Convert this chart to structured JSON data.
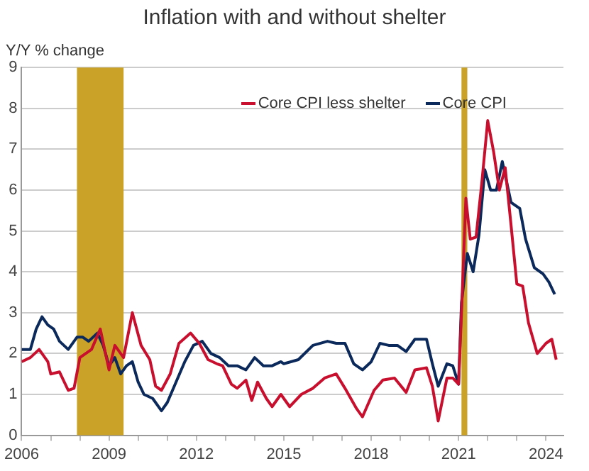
{
  "chart_data": {
    "type": "line",
    "title": "Inflation with and without shelter",
    "ylabel": "Y/Y % change",
    "xlim": [
      2006,
      2024.6
    ],
    "xticks": [
      2006,
      {
        "value": 2007,
        "label": null
      },
      {
        "value": 2008,
        "label": null
      },
      2009,
      {
        "value": 2010,
        "label": null
      },
      {
        "value": 2011,
        "label": null
      },
      2012,
      {
        "value": 2013,
        "label": null
      },
      {
        "value": 2014,
        "label": null
      },
      2015,
      {
        "value": 2016,
        "label": null
      },
      {
        "value": 2017,
        "label": null
      },
      2018,
      {
        "value": 2019,
        "label": null
      },
      {
        "value": 2020,
        "label": null
      },
      2021,
      {
        "value": 2022,
        "label": null
      },
      {
        "value": 2023,
        "label": null
      },
      2024
    ],
    "ylim": [
      0,
      9
    ],
    "yticks": [
      0,
      1,
      2,
      3,
      4,
      5,
      6,
      7,
      8,
      9
    ],
    "grid": "y",
    "legend": "top right",
    "marker": "none",
    "line_style": "solid",
    "bands": [
      {
        "axis": "x",
        "from": 2007.9,
        "to": 2009.5,
        "color": "#c9a227"
      },
      {
        "axis": "x",
        "from": 2021.1,
        "to": 2021.3,
        "color": "#c9a227"
      }
    ],
    "series": [
      {
        "name": "Core CPI less shelter",
        "color": "#c8102e",
        "x": [
          2006.0,
          2006.3,
          2006.6,
          2006.9,
          2007.0,
          2007.3,
          2007.6,
          2007.8,
          2008.0,
          2008.2,
          2008.4,
          2008.7,
          2009.0,
          2009.2,
          2009.5,
          2009.8,
          2010.1,
          2010.4,
          2010.6,
          2010.8,
          2011.1,
          2011.4,
          2011.8,
          2012.1,
          2012.4,
          2012.7,
          2012.9,
          2013.2,
          2013.4,
          2013.7,
          2013.9,
          2014.1,
          2014.4,
          2014.6,
          2014.9,
          2015.2,
          2015.6,
          2016.0,
          2016.4,
          2016.8,
          2017.1,
          2017.5,
          2017.7,
          2018.1,
          2018.4,
          2018.8,
          2019.2,
          2019.5,
          2019.9,
          2020.1,
          2020.3,
          2020.6,
          2020.8,
          2021.0,
          2021.1,
          2021.25,
          2021.4,
          2021.6,
          2021.8,
          2022.0,
          2022.2,
          2022.4,
          2022.6,
          2022.8,
          2023.0,
          2023.2,
          2023.4,
          2023.7,
          2024.0,
          2024.2,
          2024.35
        ],
        "values": [
          1.8,
          1.9,
          2.1,
          1.8,
          1.5,
          1.55,
          1.1,
          1.15,
          1.9,
          2.0,
          2.1,
          2.6,
          1.6,
          2.2,
          1.9,
          3.0,
          2.2,
          1.85,
          1.2,
          1.1,
          1.5,
          2.25,
          2.5,
          2.25,
          1.85,
          1.75,
          1.7,
          1.25,
          1.15,
          1.35,
          0.85,
          1.3,
          0.9,
          0.7,
          1.0,
          0.7,
          1.0,
          1.15,
          1.4,
          1.5,
          1.15,
          0.65,
          0.45,
          1.1,
          1.35,
          1.4,
          1.05,
          1.6,
          1.65,
          1.2,
          0.35,
          1.4,
          1.4,
          1.25,
          3.0,
          5.8,
          4.8,
          4.85,
          6.2,
          7.7,
          6.95,
          6.0,
          6.55,
          5.15,
          3.7,
          3.65,
          2.75,
          2.0,
          2.25,
          2.35,
          1.85
        ]
      },
      {
        "name": "Core CPI",
        "color": "#0b2a5b",
        "x": [
          2006.0,
          2006.3,
          2006.5,
          2006.7,
          2006.9,
          2007.1,
          2007.3,
          2007.6,
          2007.9,
          2008.1,
          2008.3,
          2008.6,
          2008.8,
          2009.0,
          2009.2,
          2009.4,
          2009.6,
          2009.8,
          2010.0,
          2010.2,
          2010.5,
          2010.8,
          2011.0,
          2011.3,
          2011.6,
          2011.9,
          2012.2,
          2012.5,
          2012.8,
          2013.1,
          2013.4,
          2013.7,
          2014.0,
          2014.3,
          2014.6,
          2014.9,
          2015.0,
          2015.5,
          2016.0,
          2016.5,
          2016.8,
          2017.1,
          2017.4,
          2017.7,
          2018.0,
          2018.3,
          2018.6,
          2018.9,
          2019.2,
          2019.5,
          2019.9,
          2020.1,
          2020.3,
          2020.6,
          2020.8,
          2021.0,
          2021.1,
          2021.3,
          2021.5,
          2021.7,
          2021.9,
          2022.1,
          2022.3,
          2022.5,
          2022.8,
          2023.1,
          2023.3,
          2023.6,
          2023.9,
          2024.1,
          2024.3
        ],
        "values": [
          2.1,
          2.1,
          2.6,
          2.9,
          2.7,
          2.6,
          2.3,
          2.1,
          2.4,
          2.4,
          2.3,
          2.5,
          2.2,
          1.7,
          1.9,
          1.5,
          1.7,
          1.8,
          1.3,
          1.0,
          0.9,
          0.6,
          0.8,
          1.3,
          1.8,
          2.2,
          2.3,
          2.0,
          1.9,
          1.7,
          1.7,
          1.6,
          1.9,
          1.7,
          1.7,
          1.8,
          1.75,
          1.85,
          2.2,
          2.3,
          2.25,
          2.25,
          1.75,
          1.6,
          1.8,
          2.25,
          2.2,
          2.2,
          2.05,
          2.35,
          2.35,
          1.75,
          1.2,
          1.75,
          1.7,
          1.25,
          3.25,
          4.45,
          4.0,
          4.9,
          6.5,
          6.0,
          6.0,
          6.7,
          5.7,
          5.55,
          4.8,
          4.1,
          3.95,
          3.75,
          3.45
        ]
      }
    ]
  }
}
